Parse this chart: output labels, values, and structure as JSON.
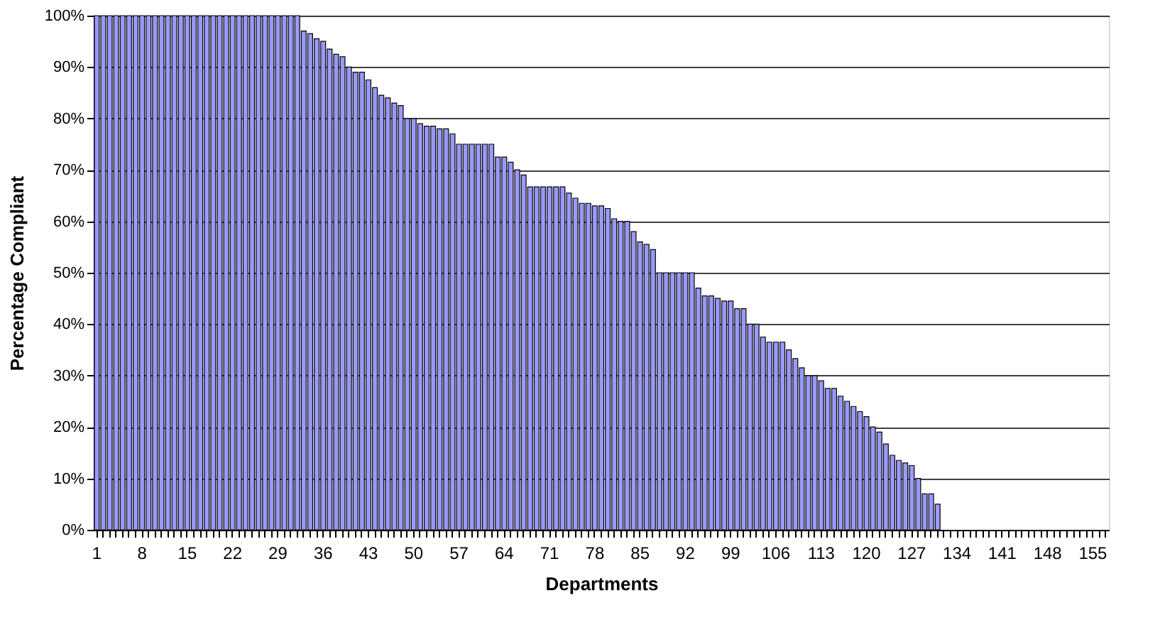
{
  "chart_data": {
    "type": "bar",
    "xlabel": "Departments",
    "ylabel": "Percentage Compliant",
    "color": "#9999ff",
    "grid": "y",
    "categories": [
      "1",
      null,
      null,
      null,
      null,
      null,
      null,
      "8",
      null,
      null,
      null,
      null,
      null,
      null,
      "15",
      null,
      null,
      null,
      null,
      null,
      null,
      "22",
      null,
      null,
      null,
      null,
      null,
      null,
      "29",
      null,
      null,
      null,
      null,
      null,
      null,
      "36",
      null,
      null,
      null,
      null,
      null,
      null,
      "43",
      null,
      null,
      null,
      null,
      null,
      null,
      "50",
      null,
      null,
      null,
      null,
      null,
      null,
      "57",
      null,
      null,
      null,
      null,
      null,
      null,
      "64",
      null,
      null,
      null,
      null,
      null,
      null,
      "71",
      null,
      null,
      null,
      null,
      null,
      null,
      "78",
      null,
      null,
      null,
      null,
      null,
      null,
      "85",
      null,
      null,
      null,
      null,
      null,
      null,
      "92",
      null,
      null,
      null,
      null,
      null,
      null,
      "99",
      null,
      null,
      null,
      null,
      null,
      null,
      "106",
      null,
      null,
      null,
      null,
      null,
      null,
      "113",
      null,
      null,
      null,
      null,
      null,
      null,
      "120",
      null,
      null,
      null,
      null,
      null,
      null,
      "127",
      null,
      null,
      null,
      null,
      null,
      null,
      "134",
      null,
      null,
      null,
      null,
      null,
      null,
      "141",
      null,
      null,
      null,
      null,
      null,
      null,
      "148",
      null,
      null,
      null,
      null,
      null,
      null,
      "155",
      null,
      null
    ],
    "values": [
      100,
      100,
      100,
      100,
      100,
      100,
      100,
      100,
      100,
      100,
      100,
      100,
      100,
      100,
      100,
      100,
      100,
      100,
      100,
      100,
      100,
      100,
      100,
      100,
      100,
      100,
      100,
      100,
      100,
      100,
      100,
      100,
      97,
      96.5,
      95.5,
      95,
      93.5,
      92.5,
      92,
      90,
      89,
      89,
      87.5,
      86,
      84.5,
      84,
      83,
      82.5,
      80,
      80,
      79,
      78.5,
      78.5,
      78,
      78,
      77,
      75,
      75,
      75,
      75,
      75,
      75,
      72.5,
      72.5,
      71.5,
      70,
      69,
      66.7,
      66.7,
      66.7,
      66.7,
      66.7,
      66.7,
      65.5,
      64.5,
      63.5,
      63.5,
      63,
      63,
      62.5,
      60.5,
      60,
      60,
      58,
      56,
      55.5,
      54.5,
      50,
      50,
      50,
      50,
      50,
      50,
      47,
      45.5,
      45.5,
      45,
      44.5,
      44.5,
      43,
      43,
      40,
      40,
      37.5,
      36.5,
      36.5,
      36.5,
      35,
      33.3,
      31.5,
      30,
      30,
      29,
      27.5,
      27.5,
      26,
      25,
      24,
      23,
      22,
      20,
      19,
      16.7,
      14.5,
      13.5,
      13,
      12.5,
      10,
      7,
      7,
      5,
      null,
      null,
      null,
      null,
      null,
      null,
      null,
      null,
      null,
      null,
      null,
      null,
      null,
      null,
      null,
      null,
      null,
      null,
      null,
      null,
      null,
      null,
      null,
      null,
      null,
      null
    ],
    "ylim": [
      0,
      100
    ],
    "yticks": [
      {
        "value": 0,
        "label": "0%"
      },
      {
        "value": 10,
        "label": "10%"
      },
      {
        "value": 20,
        "label": "20%"
      },
      {
        "value": 30,
        "label": "30%"
      },
      {
        "value": 40,
        "label": "40%"
      },
      {
        "value": 50,
        "label": "50%"
      },
      {
        "value": 60,
        "label": "60%"
      },
      {
        "value": 70,
        "label": "70%"
      },
      {
        "value": 80,
        "label": "80%"
      },
      {
        "value": 90,
        "label": "90%"
      },
      {
        "value": 100,
        "label": "100%"
      }
    ]
  }
}
